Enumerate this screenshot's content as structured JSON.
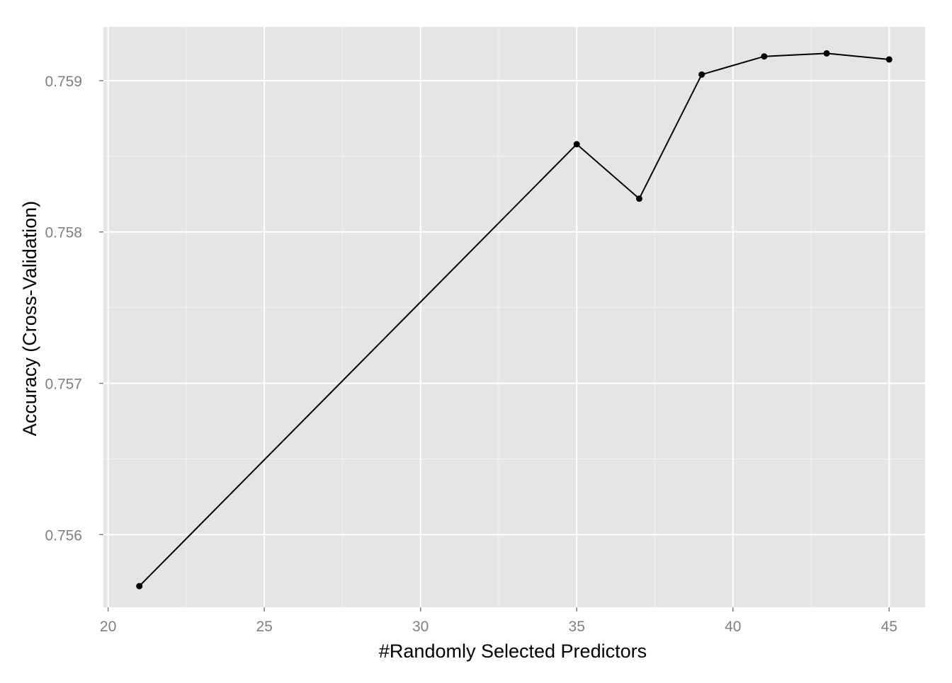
{
  "chart_data": {
    "type": "line",
    "title": "",
    "xlabel": "#Randomly Selected Predictors",
    "ylabel": "Accuracy (Cross-Validation)",
    "x": [
      21,
      35,
      37,
      39,
      41,
      43,
      45
    ],
    "series": [
      {
        "values": [
          0.75566,
          0.75858,
          0.75822,
          0.75904,
          0.75916,
          0.75918,
          0.75914
        ]
      }
    ],
    "xlim": [
      19.85,
      46.15
    ],
    "ylim": [
      0.75552,
      0.759355
    ],
    "x_ticks": [
      20,
      25,
      30,
      35,
      40,
      45
    ],
    "x_tick_labels": [
      "20",
      "25",
      "30",
      "35",
      "40",
      "45"
    ],
    "y_ticks": [
      0.756,
      0.757,
      0.758,
      0.759
    ],
    "y_tick_labels": [
      "0.756",
      "0.757",
      "0.758",
      "0.759"
    ],
    "grid": true,
    "panel_background": "#e5e5e5",
    "grid_major_color": "#ffffff",
    "grid_minor_color": "#f2f2f2",
    "line_color": "#000000",
    "point_color": "#000000"
  }
}
